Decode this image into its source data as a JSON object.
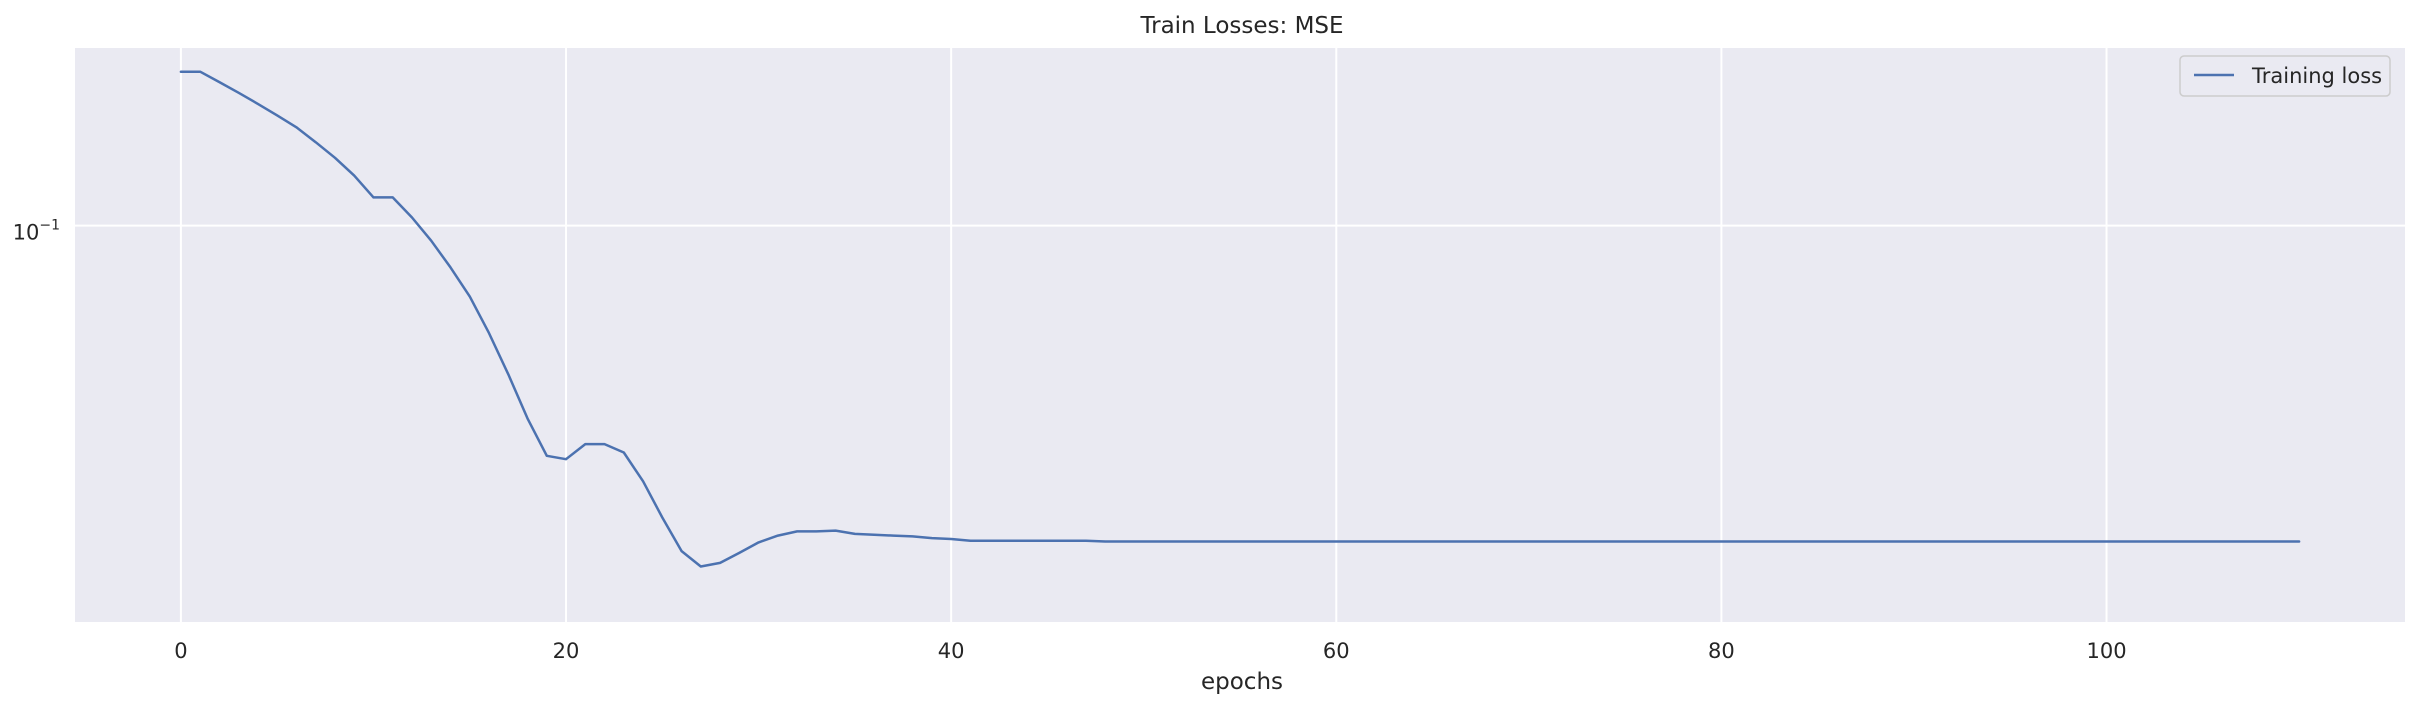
{
  "chart_data": {
    "type": "line",
    "title": "Train Losses:  MSE",
    "xlabel": "epochs",
    "ylabel": "",
    "yscale": "log",
    "xlim": [
      -5.5,
      115.5
    ],
    "ylim": [
      0.0298,
      0.172
    ],
    "x_ticks": [
      0,
      20,
      40,
      60,
      80,
      100
    ],
    "x_tick_labels": [
      "0",
      "20",
      "40",
      "60",
      "80",
      "100"
    ],
    "y_ticks": [
      0.1
    ],
    "y_tick_labels": [
      {
        "base": "10",
        "exp": "−1"
      }
    ],
    "grid": true,
    "background": "#eaeaf2",
    "legend": {
      "position": "top-right"
    },
    "series": [
      {
        "name": "Training loss",
        "color": "#4c72b0",
        "x": [
          0,
          1,
          2,
          3,
          4,
          5,
          6,
          7,
          8,
          9,
          10,
          11,
          12,
          13,
          14,
          15,
          16,
          17,
          18,
          19,
          20,
          21,
          22,
          23,
          24,
          25,
          26,
          27,
          28,
          29,
          30,
          31,
          32,
          33,
          34,
          35,
          36,
          37,
          38,
          39,
          40,
          41,
          42,
          43,
          44,
          45,
          46,
          47,
          48,
          49,
          50,
          51,
          52,
          53,
          54,
          55,
          56,
          57,
          58,
          59,
          60,
          61,
          62,
          63,
          64,
          65,
          66,
          67,
          68,
          69,
          70,
          71,
          72,
          73,
          74,
          75,
          76,
          77,
          78,
          79,
          80,
          81,
          82,
          83,
          84,
          85,
          86,
          87,
          88,
          89,
          90,
          91,
          92,
          93,
          94,
          95,
          96,
          97,
          98,
          99,
          100,
          101,
          102,
          103,
          104,
          105,
          106,
          107,
          108,
          109,
          110
        ],
        "y": [
          0.16,
          0.16,
          0.155,
          0.15,
          0.145,
          0.14,
          0.135,
          0.129,
          0.123,
          0.1165,
          0.109,
          0.109,
          0.1025,
          0.0955,
          0.088,
          0.0805,
          0.072,
          0.0635,
          0.0555,
          0.0495,
          0.049,
          0.0513,
          0.0513,
          0.05,
          0.0458,
          0.041,
          0.037,
          0.0353,
          0.0357,
          0.0368,
          0.038,
          0.0388,
          0.0393,
          0.0393,
          0.0394,
          0.039,
          0.0389,
          0.0388,
          0.0387,
          0.0385,
          0.0384,
          0.0382,
          0.0382,
          0.0382,
          0.0382,
          0.0382,
          0.0382,
          0.0382,
          0.0381,
          0.0381,
          0.0381,
          0.0381,
          0.0381,
          0.0381,
          0.0381,
          0.0381,
          0.0381,
          0.0381,
          0.0381,
          0.0381,
          0.0381,
          0.0381,
          0.0381,
          0.0381,
          0.0381,
          0.0381,
          0.0381,
          0.0381,
          0.0381,
          0.0381,
          0.0381,
          0.0381,
          0.0381,
          0.0381,
          0.0381,
          0.0381,
          0.0381,
          0.0381,
          0.0381,
          0.0381,
          0.0381,
          0.0381,
          0.0381,
          0.0381,
          0.0381,
          0.0381,
          0.0381,
          0.0381,
          0.0381,
          0.0381,
          0.0381,
          0.0381,
          0.0381,
          0.0381,
          0.0381,
          0.0381,
          0.0381,
          0.0381,
          0.0381,
          0.0381,
          0.0381,
          0.0381,
          0.0381,
          0.0381,
          0.0381,
          0.0381,
          0.0381,
          0.0381,
          0.0381,
          0.0381,
          0.0381
        ]
      }
    ]
  }
}
